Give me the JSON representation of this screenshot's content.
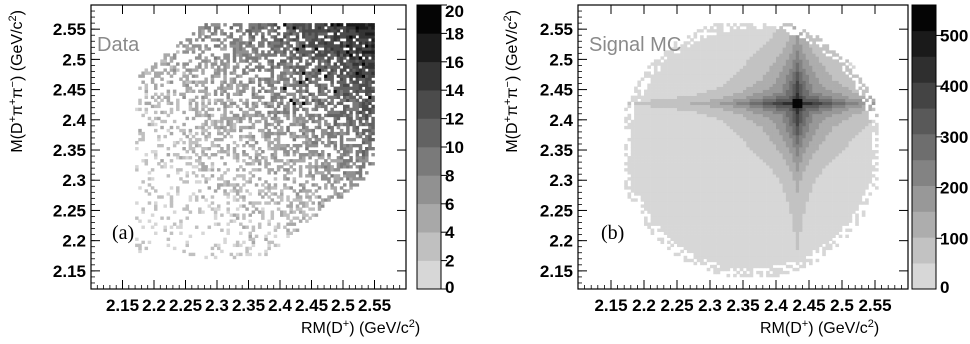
{
  "chart_data": [
    {
      "type": "heatmap",
      "panel_tag": "(a)",
      "sample_label": "Data",
      "xlabel": "RM(D⁺) (GeV/c²)",
      "ylabel": "M(D⁺π⁺π⁻) (GeV/c²)",
      "x_ticks": [
        "2.15",
        "2.2",
        "2.25",
        "2.3",
        "2.35",
        "2.4",
        "2.45",
        "2.5",
        "2.55"
      ],
      "y_ticks": [
        "2.15",
        "2.2",
        "2.25",
        "2.3",
        "2.35",
        "2.4",
        "2.45",
        "2.5",
        "2.55"
      ],
      "xlim": [
        2.1,
        2.6
      ],
      "ylim": [
        2.12,
        2.59
      ],
      "zlim": [
        0,
        20
      ],
      "z_ticks": [
        "0",
        "2",
        "4",
        "6",
        "8",
        "10",
        "12",
        "14",
        "16",
        "18",
        "20"
      ],
      "z_levels": 10,
      "distribution": {
        "x_range": [
          2.17,
          2.545
        ],
        "y_range": [
          2.17,
          2.555
        ],
        "center_x": 2.445,
        "center_y": 2.435,
        "peak_entries": 20,
        "shape": "sparse speckled band rising to the upper right, densest for x > 2.40 and y > 2.40"
      }
    },
    {
      "type": "heatmap",
      "panel_tag": "(b)",
      "sample_label": "Signal MC",
      "xlabel": "RM(D⁺) (GeV/c²)",
      "ylabel": "M(D⁺π⁺π⁻) (GeV/c²)",
      "x_ticks": [
        "2.15",
        "2.2",
        "2.25",
        "2.3",
        "2.35",
        "2.4",
        "2.45",
        "2.5",
        "2.55"
      ],
      "y_ticks": [
        "2.15",
        "2.2",
        "2.25",
        "2.3",
        "2.35",
        "2.4",
        "2.45",
        "2.5",
        "2.55"
      ],
      "xlim": [
        2.1,
        2.6
      ],
      "ylim": [
        2.12,
        2.59
      ],
      "zlim": [
        0,
        560
      ],
      "z_ticks": [
        "100",
        "200",
        "300",
        "400",
        "500"
      ],
      "z_bottom_label": "0",
      "z_levels": 11,
      "distribution": {
        "x_range": [
          2.17,
          2.55
        ],
        "y_range": [
          2.14,
          2.555
        ],
        "center_x": 2.43,
        "center_y": 2.425,
        "peak_entries": 560,
        "shape": "smooth filled ellipse with a cross-shaped peak centered at (2.43, 2.425)"
      }
    }
  ]
}
